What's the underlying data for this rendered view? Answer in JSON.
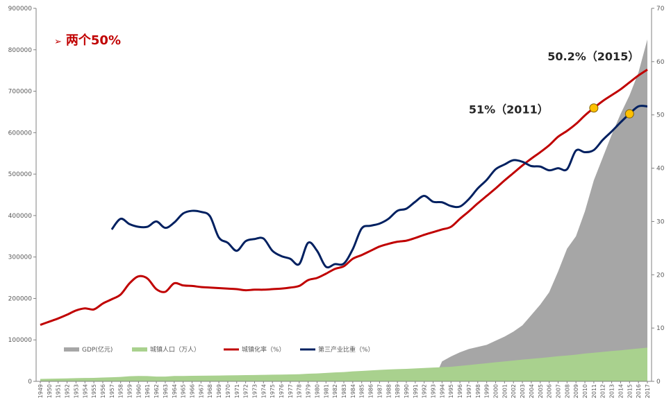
{
  "headline": "两个50%",
  "annotations": [
    {
      "text": "51%（2011）",
      "year": 2011,
      "value": 51.3,
      "series": "urbanization"
    },
    {
      "text": "50.2%（2015）",
      "year": 2015,
      "value": 50.2,
      "series": "tertiary"
    }
  ],
  "chart_data": {
    "type": "area",
    "title": "",
    "xlabel": "",
    "ylabel": "",
    "x_start": 1949,
    "x_end": 2017,
    "x": [
      1949,
      1950,
      1951,
      1952,
      1953,
      1954,
      1955,
      1956,
      1957,
      1958,
      1959,
      1960,
      1961,
      1962,
      1963,
      1964,
      1965,
      1966,
      1967,
      1968,
      1969,
      1970,
      1971,
      1972,
      1973,
      1974,
      1975,
      1976,
      1977,
      1978,
      1979,
      1980,
      1981,
      1982,
      1983,
      1984,
      1985,
      1986,
      1987,
      1988,
      1989,
      1990,
      1991,
      1992,
      1993,
      1994,
      1995,
      1996,
      1997,
      1998,
      1999,
      2000,
      2001,
      2002,
      2003,
      2004,
      2005,
      2006,
      2007,
      2008,
      2009,
      2010,
      2011,
      2012,
      2013,
      2014,
      2015,
      2016,
      2017
    ],
    "y_left": {
      "min": 0,
      "max": 900000,
      "ticks": [
        0,
        100000,
        200000,
        300000,
        400000,
        500000,
        600000,
        700000,
        800000,
        900000
      ]
    },
    "y_right": {
      "min": 0,
      "max": 70,
      "ticks": [
        0,
        10,
        20,
        30,
        40,
        50,
        60,
        70
      ]
    },
    "legend_position": "bottom-left",
    "grid": false,
    "series": [
      {
        "name": "GDP(亿元)",
        "kind": "area",
        "axis": "left",
        "color": "#a6a6a6",
        "values": [
          0,
          0,
          0,
          0,
          0,
          0,
          0,
          0,
          0,
          0,
          0,
          0,
          0,
          0,
          0,
          0,
          0,
          0,
          0,
          0,
          0,
          0,
          0,
          0,
          0,
          0,
          0,
          0,
          0,
          0,
          0,
          0,
          0,
          0,
          0,
          0,
          0,
          0,
          0,
          0,
          0,
          0,
          0,
          0,
          0,
          48000,
          60000,
          70000,
          78000,
          83000,
          88000,
          98000,
          108000,
          120000,
          135000,
          160000,
          185000,
          215000,
          265000,
          320000,
          350000,
          410000,
          485000,
          540000,
          595000,
          645000,
          690000,
          745000,
          825000
        ]
      },
      {
        "name": "城镇人口（万人）",
        "kind": "area",
        "axis": "left",
        "color": "#a9d18e",
        "values": [
          5800,
          6200,
          6600,
          7200,
          7800,
          8200,
          8300,
          9200,
          9900,
          10700,
          12400,
          13000,
          12700,
          11600,
          11600,
          12900,
          13000,
          13300,
          13500,
          13800,
          14100,
          14400,
          14700,
          15000,
          15300,
          15600,
          16000,
          16300,
          16700,
          17200,
          18500,
          19100,
          20200,
          21500,
          22300,
          24000,
          25100,
          26400,
          27700,
          28700,
          29500,
          30200,
          31200,
          32200,
          33200,
          34200,
          35200,
          37300,
          39400,
          41600,
          43700,
          45900,
          48100,
          50200,
          52400,
          54300,
          56200,
          58300,
          60600,
          62400,
          64500,
          67100,
          69100,
          71200,
          73100,
          74900,
          77100,
          79300,
          81300
        ]
      },
      {
        "name": "城镇化率（%）",
        "kind": "line",
        "axis": "right",
        "color": "#c00000",
        "values": [
          10.6,
          11.2,
          11.8,
          12.5,
          13.3,
          13.7,
          13.5,
          14.6,
          15.4,
          16.3,
          18.4,
          19.7,
          19.3,
          17.3,
          16.8,
          18.4,
          18.0,
          17.9,
          17.7,
          17.6,
          17.5,
          17.4,
          17.3,
          17.1,
          17.2,
          17.2,
          17.3,
          17.4,
          17.6,
          17.9,
          19.0,
          19.4,
          20.2,
          21.1,
          21.6,
          23.0,
          23.7,
          24.5,
          25.3,
          25.8,
          26.2,
          26.4,
          26.9,
          27.5,
          28.0,
          28.5,
          29.0,
          30.5,
          31.9,
          33.4,
          34.8,
          36.2,
          37.7,
          39.1,
          40.5,
          41.8,
          43.0,
          44.3,
          45.9,
          47.0,
          48.3,
          49.9,
          51.3,
          52.6,
          53.7,
          54.8,
          56.1,
          57.4,
          58.5
        ]
      },
      {
        "name": "第三产业比重（%）",
        "kind": "line",
        "axis": "right",
        "color": "#002060",
        "values": [
          null,
          null,
          null,
          null,
          null,
          null,
          null,
          null,
          28.5,
          30.5,
          29.5,
          29.0,
          29.0,
          30.0,
          28.8,
          29.8,
          31.5,
          32.0,
          31.8,
          31.0,
          27.0,
          26.0,
          24.5,
          26.3,
          26.7,
          26.8,
          24.5,
          23.5,
          23.0,
          22.0,
          26.0,
          24.5,
          21.5,
          22.0,
          22.1,
          24.8,
          28.7,
          29.2,
          29.6,
          30.5,
          32.0,
          32.4,
          33.7,
          34.8,
          33.7,
          33.6,
          32.9,
          32.8,
          34.2,
          36.2,
          37.8,
          39.8,
          40.7,
          41.5,
          41.2,
          40.4,
          40.3,
          39.6,
          40.0,
          39.8,
          43.3,
          43.0,
          43.4,
          45.3,
          46.9,
          48.6,
          50.2,
          51.6,
          51.6
        ]
      }
    ]
  }
}
